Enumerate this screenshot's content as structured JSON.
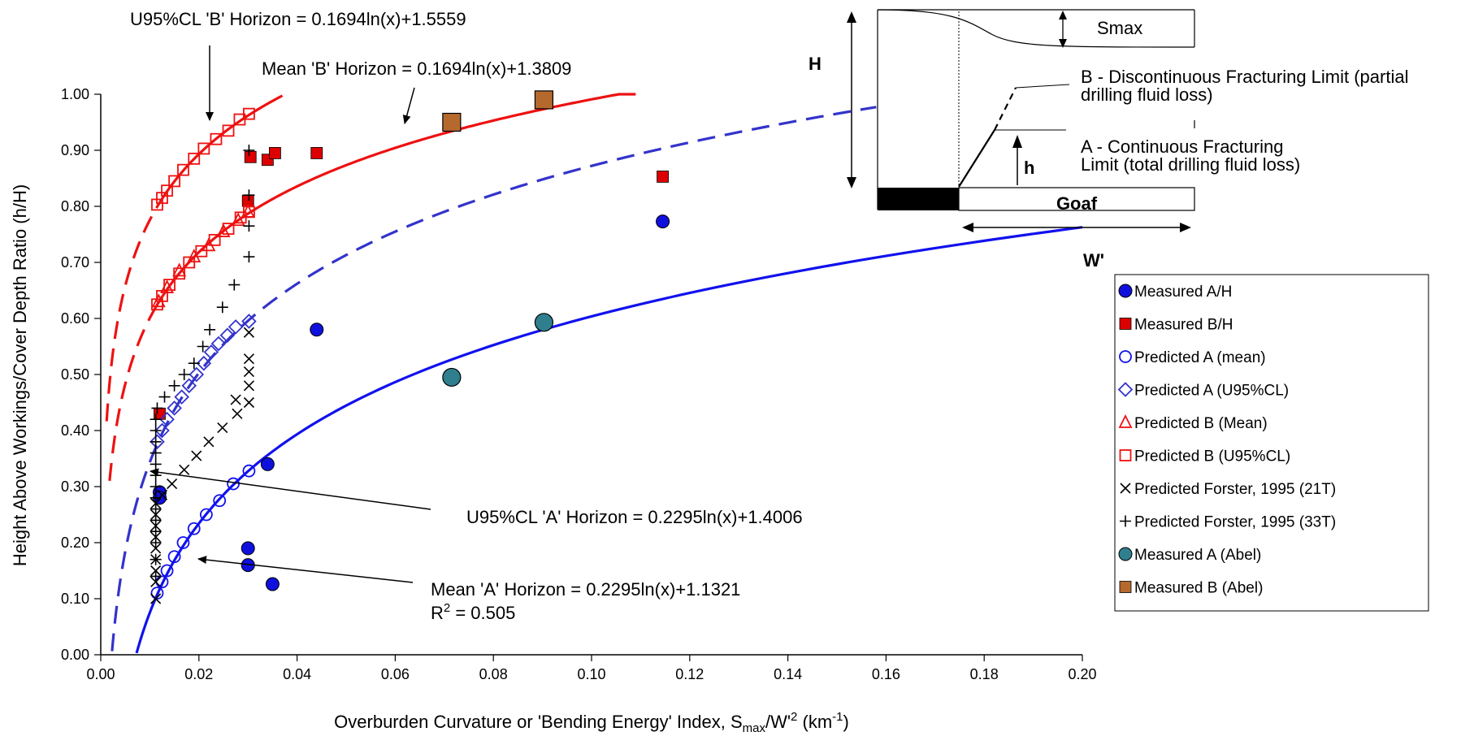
{
  "chart_data": {
    "type": "scatter",
    "xlabel": "Overburden Curvature or 'Bending Energy' Index, S",
    "xlabel_sub": "max",
    "xlabel_mid": "/W'",
    "xlabel_sup": "2",
    "xlabel_unit_pre": " (km",
    "xlabel_unit_sup": "-1",
    "xlabel_unit_post": ")",
    "ylabel": "Height Above Workings/Cover Depth Ratio (h/H)",
    "xlim": [
      0,
      0.2
    ],
    "ylim": [
      0,
      1.0
    ],
    "xticks": [
      "0.00",
      "0.02",
      "0.04",
      "0.06",
      "0.08",
      "0.10",
      "0.12",
      "0.14",
      "0.16",
      "0.18",
      "0.20"
    ],
    "yticks": [
      "0.00",
      "0.10",
      "0.20",
      "0.30",
      "0.40",
      "0.50",
      "0.60",
      "0.70",
      "0.80",
      "0.90",
      "1.00"
    ],
    "curves": [
      {
        "legend": "U95%CL 'B' Horizon",
        "a": 0.1694,
        "b": 1.5559,
        "color": "#ee1111",
        "x_start": 0.0012,
        "x_end": 0.037,
        "dash_until": 0.012
      },
      {
        "legend": "Mean 'B' Horizon",
        "a": 0.1694,
        "b": 1.3809,
        "color": "#ee1111",
        "x_start": 0.0018,
        "x_end": 0.109,
        "dash_until": 0.011
      },
      {
        "legend": "U95%CL 'A' Horizon",
        "a": 0.2295,
        "b": 1.4006,
        "color": "#3333cc",
        "x_start": 0.0023,
        "x_end": 0.158,
        "dash_until": 0.158
      },
      {
        "legend": "Mean 'A' Horizon",
        "a": 0.2295,
        "b": 1.1321,
        "color": "#1111ee",
        "x_start": 0.0073,
        "x_end": 0.2,
        "dash_until": 0
      }
    ],
    "series": [
      {
        "name": "Measured A/H",
        "marker": "circle-filled",
        "color": "#1010dd",
        "points": [
          [
            0.012,
            0.29
          ],
          [
            0.012,
            0.28
          ],
          [
            0.03,
            0.19
          ],
          [
            0.03,
            0.16
          ],
          [
            0.034,
            0.34
          ],
          [
            0.035,
            0.126
          ],
          [
            0.044,
            0.58
          ],
          [
            0.1145,
            0.773
          ]
        ]
      },
      {
        "name": "Measured B/H",
        "marker": "square-filled",
        "color": "#dd0000",
        "points": [
          [
            0.012,
            0.43
          ],
          [
            0.03,
            0.81
          ],
          [
            0.0305,
            0.888
          ],
          [
            0.034,
            0.883
          ],
          [
            0.0355,
            0.895
          ],
          [
            0.044,
            0.895
          ],
          [
            0.1145,
            0.853
          ]
        ]
      },
      {
        "name": "Predicted A (mean)",
        "marker": "circle-open",
        "color": "#1111ee",
        "points": [
          [
            0.0115,
            0.11
          ],
          [
            0.0125,
            0.13
          ],
          [
            0.0135,
            0.15
          ],
          [
            0.015,
            0.175
          ],
          [
            0.0168,
            0.2
          ],
          [
            0.019,
            0.225
          ],
          [
            0.0215,
            0.25
          ],
          [
            0.0242,
            0.275
          ],
          [
            0.027,
            0.305
          ],
          [
            0.0302,
            0.328
          ]
        ]
      },
      {
        "name": "Predicted A (U95%CL)",
        "marker": "diamond-open",
        "color": "#3333cc",
        "points": [
          [
            0.0115,
            0.38
          ],
          [
            0.0125,
            0.4
          ],
          [
            0.0135,
            0.42
          ],
          [
            0.015,
            0.44
          ],
          [
            0.0165,
            0.46
          ],
          [
            0.018,
            0.48
          ],
          [
            0.0195,
            0.5
          ],
          [
            0.021,
            0.52
          ],
          [
            0.0225,
            0.54
          ],
          [
            0.024,
            0.555
          ],
          [
            0.0258,
            0.57
          ],
          [
            0.0275,
            0.585
          ],
          [
            0.0302,
            0.595
          ]
        ]
      },
      {
        "name": "Predicted B (Mean)",
        "marker": "triangle-open",
        "color": "#ee1111",
        "points": [
          [
            0.0118,
            0.63
          ],
          [
            0.0135,
            0.655
          ],
          [
            0.016,
            0.685
          ],
          [
            0.019,
            0.71
          ],
          [
            0.022,
            0.73
          ],
          [
            0.025,
            0.755
          ],
          [
            0.028,
            0.775
          ],
          [
            0.03,
            0.79
          ]
        ]
      },
      {
        "name": "Predicted B (U95%CL)",
        "marker": "square-open",
        "color": "#ee1111",
        "points": [
          [
            0.0115,
            0.625
          ],
          [
            0.0125,
            0.64
          ],
          [
            0.014,
            0.66
          ],
          [
            0.016,
            0.68
          ],
          [
            0.018,
            0.7
          ],
          [
            0.0205,
            0.72
          ],
          [
            0.0232,
            0.74
          ],
          [
            0.026,
            0.76
          ],
          [
            0.0285,
            0.78
          ],
          [
            0.0302,
            0.79
          ],
          [
            0.0115,
            0.803
          ],
          [
            0.0125,
            0.815
          ],
          [
            0.0135,
            0.828
          ],
          [
            0.015,
            0.845
          ],
          [
            0.0168,
            0.865
          ],
          [
            0.019,
            0.885
          ],
          [
            0.021,
            0.903
          ],
          [
            0.0235,
            0.92
          ],
          [
            0.026,
            0.935
          ],
          [
            0.0283,
            0.955
          ],
          [
            0.0302,
            0.965
          ]
        ]
      },
      {
        "name": "Predicted Forster, 1995 (21T)",
        "marker": "x",
        "color": "#000000",
        "points": [
          [
            0.0112,
            0.1
          ],
          [
            0.0112,
            0.13
          ],
          [
            0.0112,
            0.15
          ],
          [
            0.0112,
            0.17
          ],
          [
            0.0112,
            0.19
          ],
          [
            0.0112,
            0.21
          ],
          [
            0.0112,
            0.23
          ],
          [
            0.0112,
            0.25
          ],
          [
            0.0112,
            0.27
          ],
          [
            0.0125,
            0.285
          ],
          [
            0.0145,
            0.305
          ],
          [
            0.017,
            0.33
          ],
          [
            0.0195,
            0.355
          ],
          [
            0.022,
            0.38
          ],
          [
            0.0248,
            0.405
          ],
          [
            0.0278,
            0.43
          ],
          [
            0.0275,
            0.455
          ],
          [
            0.0302,
            0.45
          ],
          [
            0.0302,
            0.48
          ],
          [
            0.0302,
            0.505
          ],
          [
            0.0302,
            0.528
          ],
          [
            0.0302,
            0.575
          ]
        ]
      },
      {
        "name": "Predicted Forster, 1995 (33T)",
        "marker": "plus",
        "color": "#000000",
        "points": [
          [
            0.0112,
            0.14
          ],
          [
            0.0112,
            0.17
          ],
          [
            0.0112,
            0.2
          ],
          [
            0.0112,
            0.22
          ],
          [
            0.0112,
            0.24
          ],
          [
            0.0112,
            0.26
          ],
          [
            0.0112,
            0.28
          ],
          [
            0.0112,
            0.3
          ],
          [
            0.0112,
            0.32
          ],
          [
            0.0112,
            0.34
          ],
          [
            0.0112,
            0.36
          ],
          [
            0.0112,
            0.38
          ],
          [
            0.0112,
            0.4
          ],
          [
            0.0112,
            0.42
          ],
          [
            0.0115,
            0.44
          ],
          [
            0.013,
            0.46
          ],
          [
            0.015,
            0.48
          ],
          [
            0.017,
            0.5
          ],
          [
            0.019,
            0.52
          ],
          [
            0.0208,
            0.55
          ],
          [
            0.0222,
            0.58
          ],
          [
            0.0248,
            0.62
          ],
          [
            0.0272,
            0.66
          ],
          [
            0.0302,
            0.71
          ],
          [
            0.0302,
            0.765
          ],
          [
            0.0302,
            0.82
          ],
          [
            0.0302,
            0.9
          ]
        ]
      },
      {
        "name": "Measured A (Abel)",
        "marker": "circle-big",
        "color": "#2f7f8f",
        "points": [
          [
            0.0715,
            0.495
          ],
          [
            0.0903,
            0.593
          ]
        ]
      },
      {
        "name": "Measured B (Abel)",
        "marker": "square-big",
        "color": "#b5692d",
        "points": [
          [
            0.0715,
            0.95
          ],
          [
            0.0903,
            0.99
          ]
        ]
      }
    ],
    "legend_placement": "right"
  },
  "annotations": {
    "u95b": "U95%CL 'B' Horizon = 0.1694ln(x)+1.5559",
    "meanb": "Mean 'B' Horizon = 0.1694ln(x)+1.3809",
    "u95a": "U95%CL 'A' Horizon = 0.2295ln(x)+1.4006",
    "meana": "Mean 'A' Horizon = 0.2295ln(x)+1.1321",
    "r2_pre": "R",
    "r2_sup": "2",
    "r2_post": " = 0.505"
  },
  "diagram": {
    "h_big": "H",
    "smax": "Smax",
    "b_label_1": "B - Discontinuous Fracturing Limit (partial",
    "b_label_2": "drilling fluid loss)",
    "a_label_1": "A - Continuous Fracturing",
    "a_label_2": "Limit (total drilling fluid loss)",
    "h_small": "h",
    "goaf": "Goaf",
    "w_prime": "W'"
  }
}
